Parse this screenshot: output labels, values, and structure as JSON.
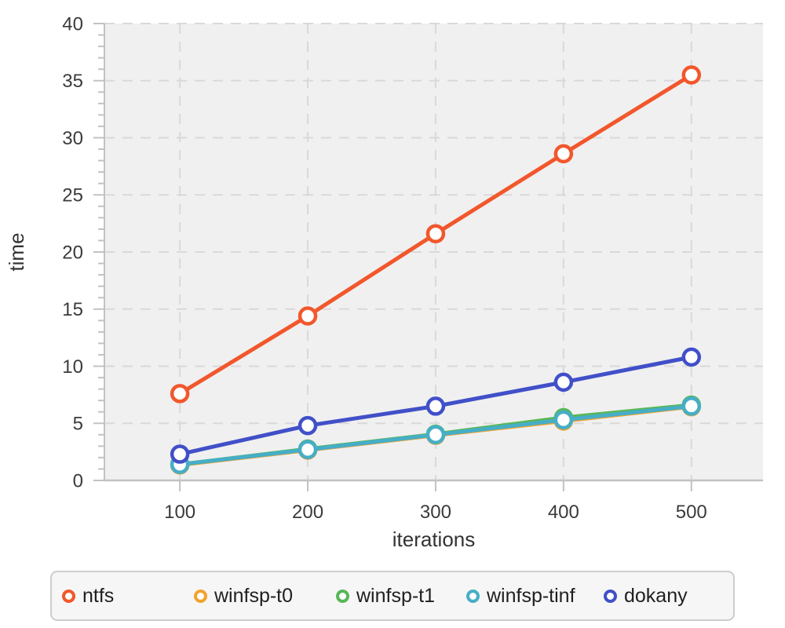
{
  "chart_data": {
    "type": "line",
    "title": "",
    "xlabel": "iterations",
    "ylabel": "time",
    "x": [
      100,
      200,
      300,
      400,
      500
    ],
    "xlim": [
      41,
      556
    ],
    "ylim": [
      0,
      40
    ],
    "x_ticks": [
      100,
      200,
      300,
      400,
      500
    ],
    "y_major_ticks": [
      0,
      5,
      10,
      15,
      20,
      25,
      30,
      35,
      40
    ],
    "y_minor_step": 1,
    "grid": "dashed gridlines at y majors and x ticks",
    "legend_position": "bottom",
    "series": [
      {
        "name": "ntfs",
        "color": "#F2572C",
        "values": [
          7.6,
          14.4,
          21.6,
          28.6,
          35.5
        ]
      },
      {
        "name": "winfsp-t0",
        "color": "#F2A32D",
        "values": [
          1.35,
          2.65,
          3.95,
          5.2,
          6.45
        ]
      },
      {
        "name": "winfsp-t1",
        "color": "#57B757",
        "values": [
          1.4,
          2.75,
          4.05,
          5.5,
          6.6
        ]
      },
      {
        "name": "winfsp-tinf",
        "color": "#46AEC7",
        "values": [
          1.4,
          2.7,
          4.0,
          5.3,
          6.5
        ]
      },
      {
        "name": "dokany",
        "color": "#4150C8",
        "values": [
          2.3,
          4.8,
          6.5,
          8.6,
          10.8
        ]
      }
    ]
  },
  "styles": {
    "plot_bg": "#F0F0F0",
    "grid_color": "#D9D9D9",
    "axis_color": "#C2C2C2",
    "tick_label_color": "#3B3B3B",
    "axis_title_color": "#333333",
    "marker_fill": "#FFFFFF",
    "legend_bg": "#F6F6F6",
    "legend_border": "#CDCDCD",
    "legend_text": "#1F1F1F"
  }
}
